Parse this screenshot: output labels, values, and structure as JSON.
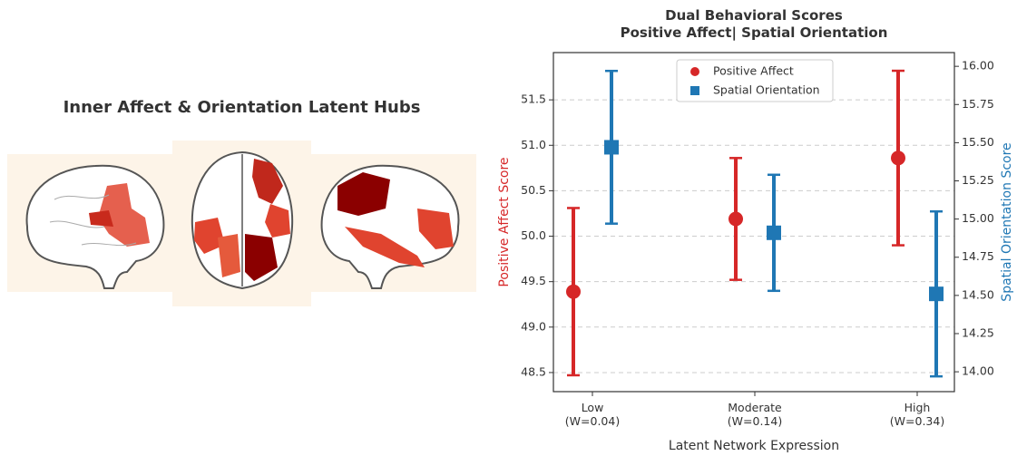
{
  "brain_panel": {
    "title": "Inner Affect & Orientation Latent Hubs"
  },
  "chart_data": {
    "type": "errorbar",
    "title": "Dual Behavioral Scores\nPositive Affect| Spatial Orientation",
    "xlabel": "Latent Network Expression",
    "ylabel": "Positive Affect Score",
    "y2label": "Spatial Orientation Score",
    "categories": [
      "Low\n(W=0.04)",
      "Moderate\n(W=0.14)",
      "High\n(W=0.34)"
    ],
    "series": [
      {
        "name": "Positive Affect",
        "color": "#d62728",
        "marker": "circle",
        "values": [
          49.39,
          50.19,
          50.86
        ],
        "errors": [
          0.92,
          0.67,
          0.96
        ]
      },
      {
        "name": "Spatial Orientation",
        "color": "#1f77b4",
        "marker": "square",
        "axis": "y2",
        "values": [
          15.47,
          14.91,
          14.51
        ],
        "errors": [
          0.5,
          0.38,
          0.54
        ]
      }
    ],
    "ylim": [
      48.29,
      52.02
    ],
    "yticks": [
      48.5,
      {
        "value": 49,
        "label": "49.0"
      },
      49.5,
      {
        "value": 50,
        "label": "50.0"
      },
      50.5,
      {
        "value": 51,
        "label": "51.0"
      },
      51.5
    ],
    "y2lim": [
      13.87,
      16.09
    ],
    "y2ticks": [
      {
        "value": 14,
        "label": "14.00"
      },
      14.25,
      {
        "value": 14.5,
        "label": "14.50"
      },
      14.75,
      {
        "value": 15,
        "label": "15.00"
      },
      15.25,
      {
        "value": 15.5,
        "label": "15.50"
      },
      15.75,
      {
        "value": 16,
        "label": "16.00"
      }
    ],
    "grid": true,
    "legend": "upper center"
  }
}
